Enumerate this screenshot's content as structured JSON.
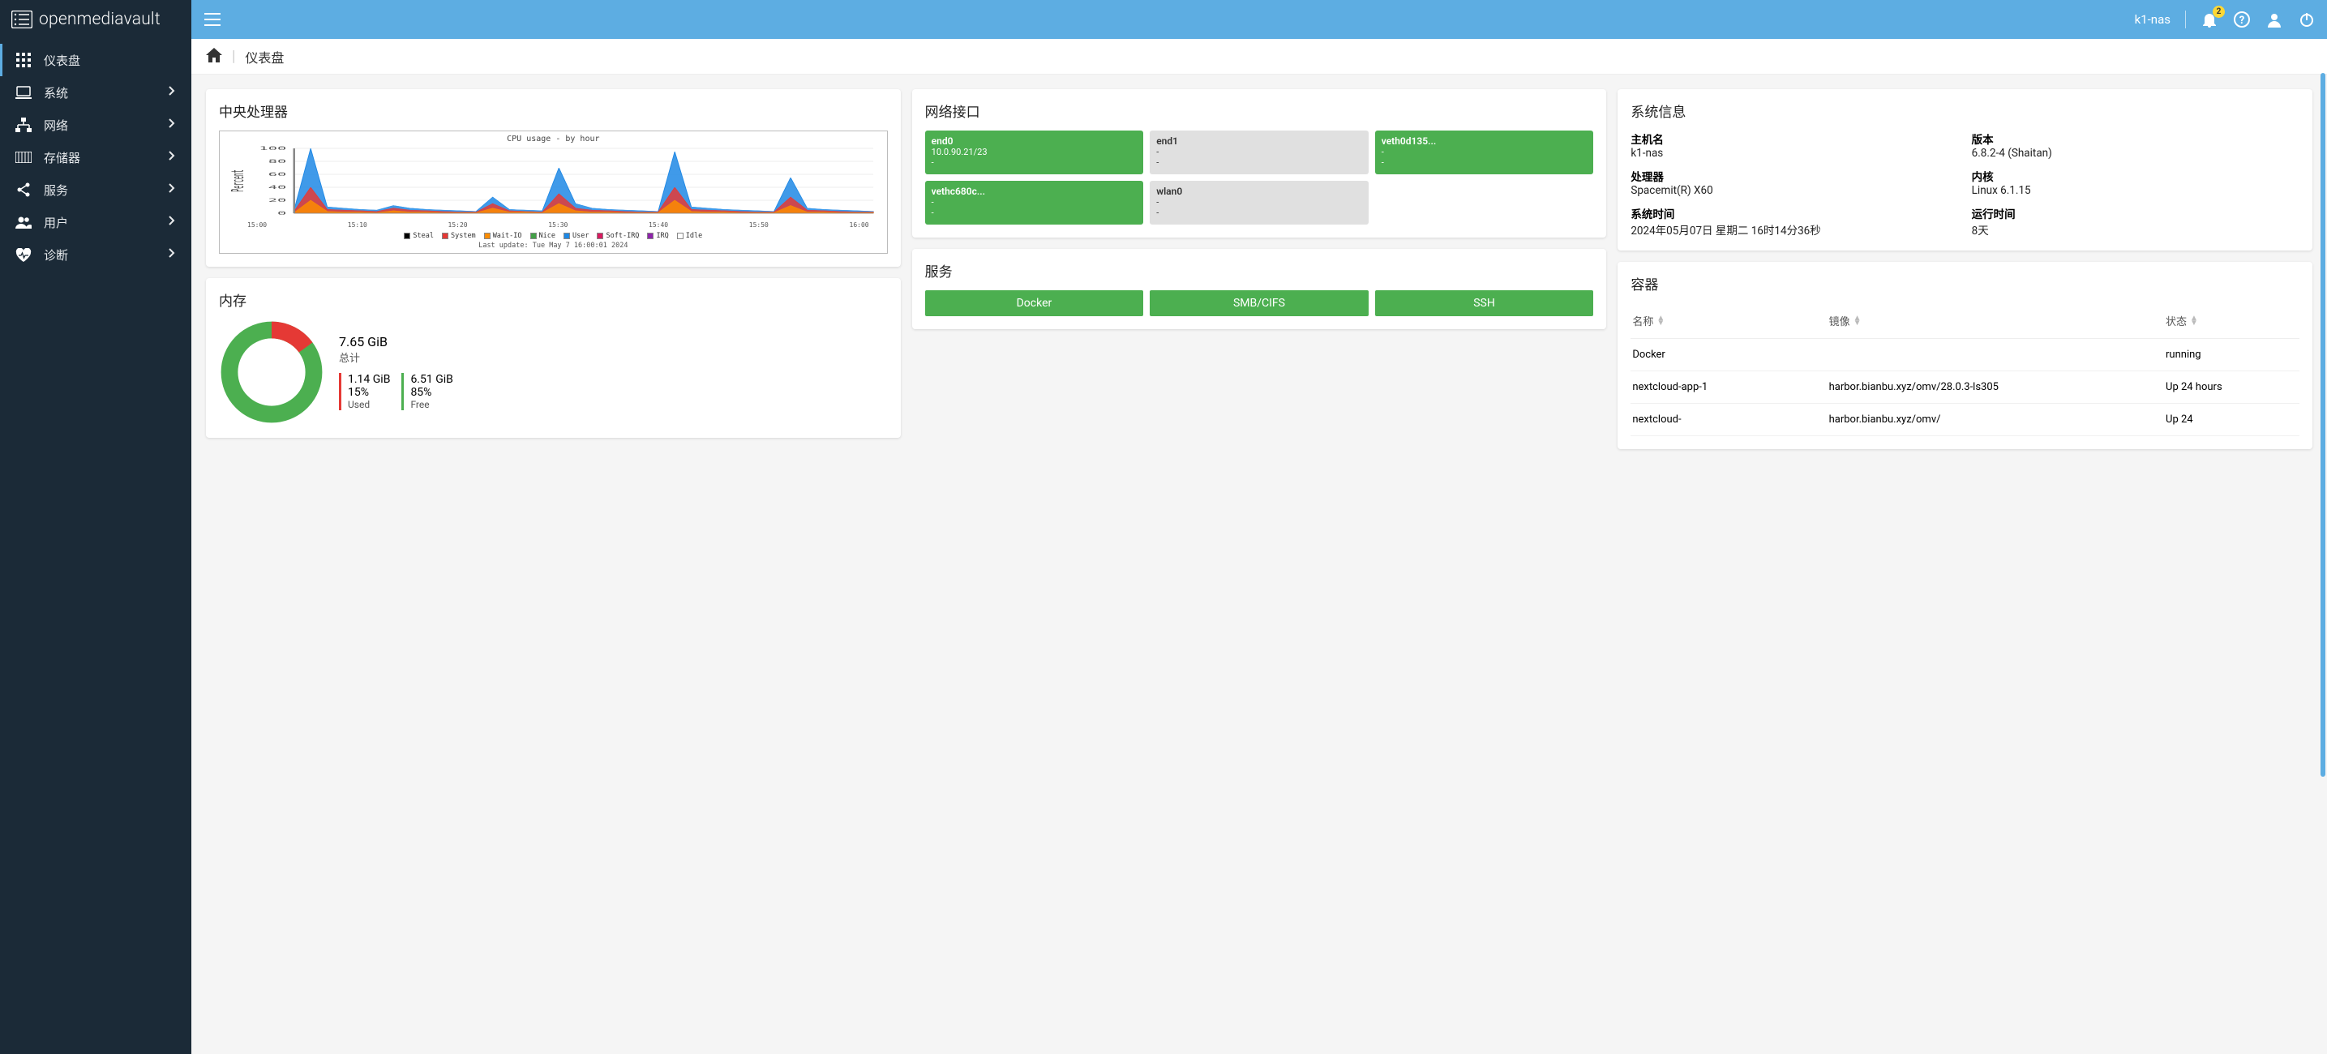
{
  "brand": {
    "name": "openmediavault"
  },
  "sidebar": {
    "items": [
      {
        "label": "仪表盘",
        "icon": "grid",
        "active": true,
        "expandable": false
      },
      {
        "label": "系统",
        "icon": "laptop",
        "active": false,
        "expandable": true
      },
      {
        "label": "网络",
        "icon": "network",
        "active": false,
        "expandable": true
      },
      {
        "label": "存储器",
        "icon": "storage",
        "active": false,
        "expandable": true
      },
      {
        "label": "服务",
        "icon": "share",
        "active": false,
        "expandable": true
      },
      {
        "label": "用户",
        "icon": "users",
        "active": false,
        "expandable": true
      },
      {
        "label": "诊断",
        "icon": "heart",
        "active": false,
        "expandable": true
      }
    ]
  },
  "topbar": {
    "hostname": "k1-nas",
    "notification_count": "2"
  },
  "breadcrumb": {
    "title": "仪表盘"
  },
  "cpu_card": {
    "title": "中央处理器",
    "chart": {
      "title": "CPU usage - by hour",
      "ylabel": "Percent",
      "ylim": [
        0,
        100
      ],
      "ytick_step": 20,
      "xticks": [
        "15:00",
        "15:10",
        "15:20",
        "15:30",
        "15:40",
        "15:50",
        "16:00"
      ],
      "legend": [
        {
          "name": "Steal",
          "color": "#000000"
        },
        {
          "name": "System",
          "color": "#e53935"
        },
        {
          "name": "Wait-IO",
          "color": "#fb8c00"
        },
        {
          "name": "Nice",
          "color": "#43a047"
        },
        {
          "name": "User",
          "color": "#1e88e5"
        },
        {
          "name": "Soft-IRQ",
          "color": "#d81b60"
        },
        {
          "name": "IRQ",
          "color": "#8e24aa"
        },
        {
          "name": "Idle",
          "color": "#ffffff"
        }
      ],
      "last_update": "Last update: Tue May  7 16:00:01 2024",
      "background_color": "#ffffff",
      "grid_color": "#dddddd",
      "series_user": [
        5,
        100,
        10,
        8,
        6,
        5,
        12,
        8,
        6,
        5,
        4,
        3,
        25,
        6,
        5,
        4,
        70,
        15,
        8,
        6,
        5,
        4,
        3,
        95,
        10,
        8,
        6,
        5,
        4,
        3,
        55,
        8,
        6,
        5,
        4,
        3
      ],
      "series_system": [
        3,
        40,
        6,
        5,
        4,
        3,
        8,
        5,
        4,
        3,
        2,
        2,
        15,
        4,
        3,
        2,
        30,
        8,
        5,
        4,
        3,
        2,
        2,
        40,
        6,
        5,
        4,
        3,
        2,
        2,
        25,
        5,
        4,
        3,
        2,
        2
      ],
      "series_waitio": [
        1,
        20,
        3,
        2,
        2,
        1,
        4,
        2,
        2,
        1,
        1,
        1,
        8,
        2,
        2,
        1,
        15,
        4,
        2,
        2,
        1,
        1,
        1,
        20,
        3,
        2,
        2,
        1,
        1,
        1,
        12,
        2,
        2,
        1,
        1,
        1
      ]
    }
  },
  "mem_card": {
    "title": "内存",
    "total_value": "7.65 GiB",
    "total_label": "总计",
    "used": {
      "value": "1.14 GiB",
      "percent": "15%",
      "label": "Used",
      "color": "#e53935",
      "frac": 0.15
    },
    "free": {
      "value": "6.51 GiB",
      "percent": "85%",
      "label": "Free",
      "color": "#4caf50",
      "frac": 0.85
    },
    "donut": {
      "stroke_width": 16
    }
  },
  "net_card": {
    "title": "网络接口",
    "ifaces": [
      {
        "name": "end0",
        "addr": "10.0.90.21/23",
        "l3": "-",
        "up": true
      },
      {
        "name": "end1",
        "addr": "-",
        "l3": "-",
        "up": false
      },
      {
        "name": "veth0d135...",
        "addr": "-",
        "l3": "-",
        "up": true
      },
      {
        "name": "vethc680c...",
        "addr": "-",
        "l3": "-",
        "up": true
      },
      {
        "name": "wlan0",
        "addr": "-",
        "l3": "-",
        "up": false
      }
    ]
  },
  "svc_card": {
    "title": "服务",
    "services": [
      {
        "name": "Docker"
      },
      {
        "name": "SMB/CIFS"
      },
      {
        "name": "SSH"
      }
    ]
  },
  "sys_card": {
    "title": "系统信息",
    "items": [
      {
        "k": "主机名",
        "v": "k1-nas"
      },
      {
        "k": "版本",
        "v": "6.8.2-4 (Shaitan)"
      },
      {
        "k": "处理器",
        "v": "Spacemit(R) X60"
      },
      {
        "k": "内核",
        "v": "Linux 6.1.15"
      },
      {
        "k": "系统时间",
        "v": "2024年05月07日 星期二 16时14分36秒"
      },
      {
        "k": "运行时间",
        "v": "8天"
      }
    ]
  },
  "containers_card": {
    "title": "容器",
    "columns": [
      "名称",
      "镜像",
      "状态"
    ],
    "rows": [
      {
        "name": "Docker",
        "image": "",
        "state": "running"
      },
      {
        "name": "nextcloud-app-1",
        "image": "harbor.bianbu.xyz/omv/28.0.3-ls305",
        "state": "Up 24 hours"
      },
      {
        "name": "nextcloud-",
        "image": "harbor.bianbu.xyz/omv/",
        "state": "Up 24"
      }
    ]
  }
}
